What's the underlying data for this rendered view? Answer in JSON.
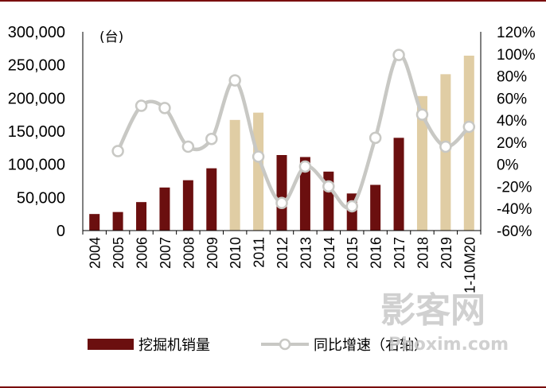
{
  "chart_data": {
    "type": "bar+line",
    "unit_label": "(台)",
    "categories": [
      "2004",
      "2005",
      "2006",
      "2007",
      "2008",
      "2009",
      "2010",
      "2011",
      "2012",
      "2013",
      "2014",
      "2015",
      "2016",
      "2017",
      "2018",
      "2019",
      "1-10M20"
    ],
    "series": [
      {
        "name": "挖掘机销量",
        "kind": "bar",
        "axis": "left",
        "values": [
          25000,
          28000,
          43000,
          65000,
          76000,
          94000,
          167000,
          178000,
          114000,
          111000,
          89000,
          56000,
          69000,
          140000,
          203000,
          236000,
          264000
        ],
        "colors": [
          "#6b0f0f",
          "#6b0f0f",
          "#6b0f0f",
          "#6b0f0f",
          "#6b0f0f",
          "#6b0f0f",
          "#e0cda4",
          "#e0cda4",
          "#6b0f0f",
          "#6b0f0f",
          "#6b0f0f",
          "#6b0f0f",
          "#6b0f0f",
          "#6b0f0f",
          "#e0cda4",
          "#e0cda4",
          "#e0cda4"
        ]
      },
      {
        "name": "同比增速（右轴）",
        "kind": "line",
        "axis": "right",
        "color": "#c8c8c4",
        "values": [
          null,
          12,
          53,
          51,
          16,
          23,
          76,
          7,
          -35,
          -2,
          -20,
          -38,
          24,
          99,
          45,
          16,
          34
        ]
      }
    ],
    "y_left": {
      "min": 0,
      "max": 300000,
      "ticks": [
        "0",
        "50,000",
        "100,000",
        "150,000",
        "200,000",
        "250,000",
        "300,000"
      ],
      "tick_values": [
        0,
        50000,
        100000,
        150000,
        200000,
        250000,
        300000
      ]
    },
    "y_right": {
      "min": -60,
      "max": 120,
      "ticks": [
        "-60%",
        "-40%",
        "-20%",
        "0%",
        "20%",
        "40%",
        "60%",
        "80%",
        "100%",
        "120%"
      ],
      "tick_values": [
        -60,
        -40,
        -20,
        0,
        20,
        40,
        60,
        80,
        100,
        120
      ]
    },
    "legend": {
      "position": "bottom",
      "items": [
        "挖掘机销量",
        "同比增速（右轴）"
      ]
    },
    "colors": {
      "bar_dark": "#6b0f0f",
      "bar_light": "#e0cda4",
      "line": "#c8c8c4",
      "frame": "#7a0e0e"
    }
  },
  "watermark": {
    "cn": "影客网",
    "en": "Phoxim.com"
  }
}
